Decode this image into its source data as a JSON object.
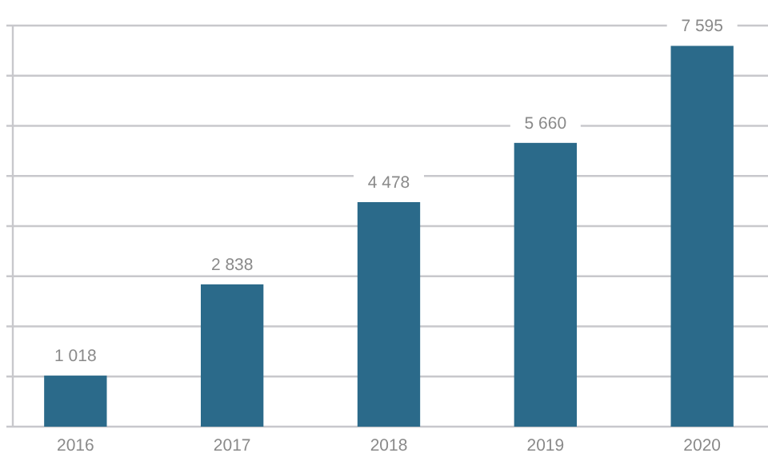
{
  "chart_data": {
    "type": "bar",
    "categories": [
      "2016",
      "2017",
      "2018",
      "2019",
      "2020"
    ],
    "values": [
      1018,
      2838,
      4478,
      5660,
      7595
    ],
    "value_labels": [
      "1 018",
      "2 838",
      "4 478",
      "5 660",
      "7 595"
    ],
    "color": "#2b6a8a",
    "ylim": [
      0,
      8000
    ],
    "yticks": [
      {
        "value": 0,
        "label": null
      },
      {
        "value": 1000,
        "label": null
      },
      {
        "value": 2000,
        "label": null
      },
      {
        "value": 3000,
        "label": null
      },
      {
        "value": 4000,
        "label": null
      },
      {
        "value": 5000,
        "label": null
      },
      {
        "value": 6000,
        "label": null
      },
      {
        "value": 7000,
        "label": null
      },
      {
        "value": 8000,
        "label": null
      }
    ],
    "tick_labels": "x",
    "grid": "y"
  }
}
